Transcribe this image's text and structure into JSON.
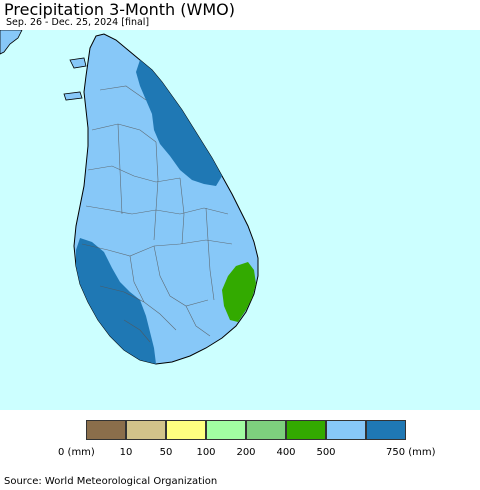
{
  "header": {
    "title": "Precipitation 3-Month (WMO)",
    "subtitle": "Sep. 26 - Dec. 25, 2024 [final]"
  },
  "map": {
    "ocean_color": "#ccffff",
    "region": "Sri Lanka",
    "category_colors": {
      "500_750": "#87c8f8",
      "750_plus": "#1f78b4",
      "400_500": "#33aa00"
    }
  },
  "legend": {
    "unit": "mm",
    "items": [
      {
        "color": "#8b6e4b",
        "label": "0 (mm)"
      },
      {
        "color": "#d2c38a",
        "label": "10"
      },
      {
        "color": "#ffff80",
        "label": "50"
      },
      {
        "color": "#a2ffa2",
        "label": "100"
      },
      {
        "color": "#7ed07e",
        "label": "200"
      },
      {
        "color": "#33aa00",
        "label": "400"
      },
      {
        "color": "#87c8f8",
        "label": "500"
      },
      {
        "color": "#1f78b4",
        "label": "750 (mm)"
      }
    ]
  },
  "footer": {
    "source": "Source: World Meteorological Organization"
  }
}
